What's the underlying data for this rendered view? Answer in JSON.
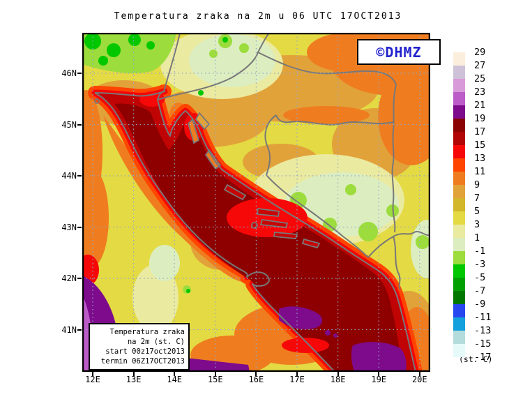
{
  "title": "Temperatura zraka na 2m u 06 UTC 17OCT2013",
  "watermark": {
    "text": "©DHMZ"
  },
  "info_box": {
    "lines": [
      "Temperatura zraka",
      "na 2m (st. C)",
      "start 00z17oct2013",
      "termin 06Z17OCT2013"
    ]
  },
  "axes": {
    "lon_labels": [
      "12E",
      "13E",
      "14E",
      "15E",
      "16E",
      "17E",
      "18E",
      "19E",
      "20E"
    ],
    "lat_labels": [
      "46N",
      "45N",
      "44N",
      "43N",
      "42N",
      "41N"
    ]
  },
  "legend": {
    "unit": "(st. C)",
    "tick_labels": [
      "29",
      "27",
      "25",
      "23",
      "21",
      "19",
      "17",
      "15",
      "13",
      "11",
      "9",
      "7",
      "5",
      "3",
      "1",
      "-1",
      "-3",
      "-5",
      "-7",
      "-9",
      "-11",
      "-13",
      "-15",
      "-17"
    ],
    "colors": [
      "#fceedc",
      "#cec2d8",
      "#d89ad8",
      "#bc5cc8",
      "#7d0b8c",
      "#8b0303",
      "#b20505",
      "#f70808",
      "#ff4500",
      "#ef7d20",
      "#e2a23a",
      "#d2b62c",
      "#e4da44",
      "#eaeaa0",
      "#dceec0",
      "#9cdc3c",
      "#00c800",
      "#00a000",
      "#007800",
      "#2846f0",
      "#14a0dc",
      "#b4dcdc",
      "#e6fafa"
    ]
  },
  "colors": {
    "grid": "#8fa8c8",
    "coast_border": "#787878",
    "frame": "#000000",
    "logo_blue": "#2222cc",
    "sea_core": "#8e0000",
    "sea_rim": "#f20606",
    "land_base": "#e4da44"
  }
}
